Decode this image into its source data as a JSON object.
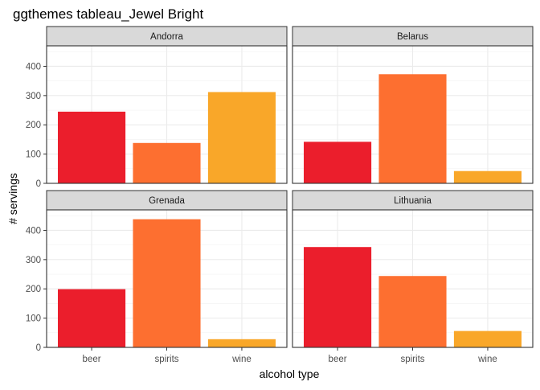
{
  "chart_data": {
    "type": "bar",
    "title": "ggthemes tableau_Jewel Bright",
    "xlabel": "alcohol type",
    "ylabel": "# servings",
    "categories": [
      "beer",
      "spirits",
      "wine"
    ],
    "ylim": [
      0,
      470
    ],
    "yticks": [
      0,
      100,
      200,
      300,
      400
    ],
    "colors": {
      "beer": "#eb1e2c",
      "spirits": "#fd6f30",
      "wine": "#f9a729"
    },
    "panels": [
      {
        "name": "Andorra",
        "values": [
          245,
          138,
          312
        ]
      },
      {
        "name": "Belarus",
        "values": [
          142,
          373,
          42
        ]
      },
      {
        "name": "Grenada",
        "values": [
          199,
          438,
          28
        ]
      },
      {
        "name": "Lithuania",
        "values": [
          343,
          244,
          56
        ]
      }
    ]
  }
}
